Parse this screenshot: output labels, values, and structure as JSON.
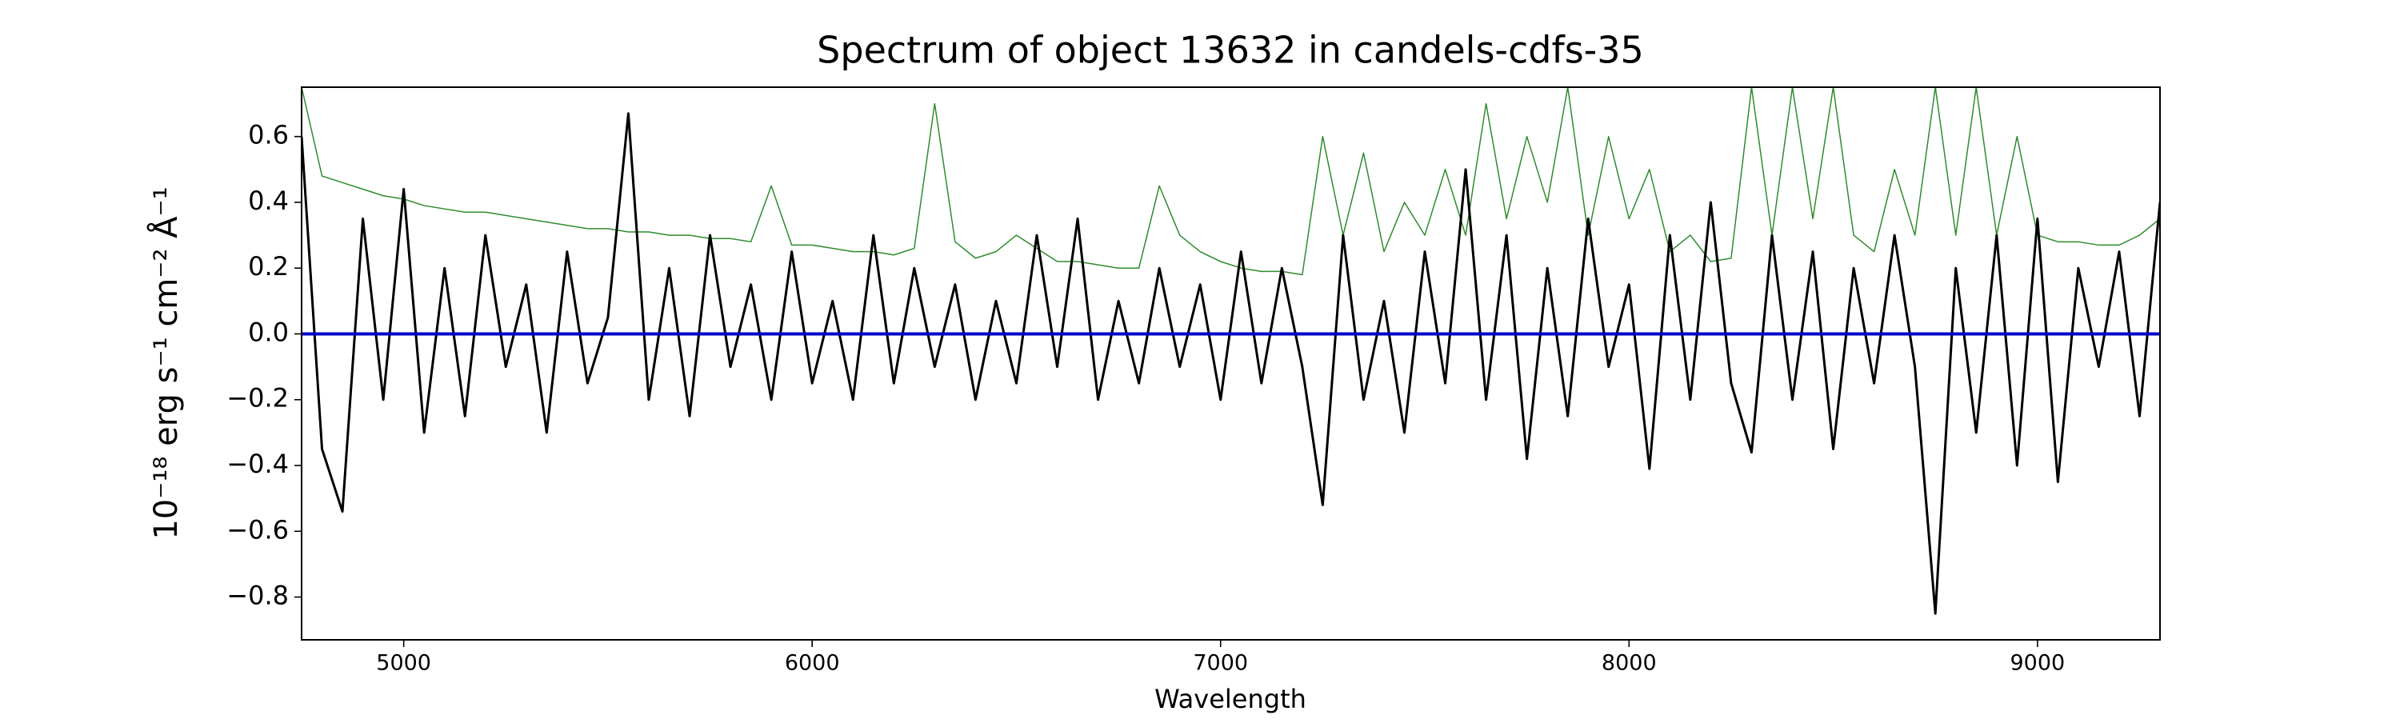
{
  "chart_data": {
    "type": "line",
    "title": "Spectrum of object 13632 in candels-cdfs-35",
    "xlabel": "Wavelength",
    "ylabel": "10⁻¹⁸ erg s⁻¹ cm⁻² Å⁻¹",
    "x": [
      4750,
      4800,
      4850,
      4900,
      4950,
      5000,
      5050,
      5100,
      5150,
      5200,
      5250,
      5300,
      5350,
      5400,
      5450,
      5500,
      5550,
      5600,
      5650,
      5700,
      5750,
      5800,
      5850,
      5900,
      5950,
      6000,
      6050,
      6100,
      6150,
      6200,
      6250,
      6300,
      6350,
      6400,
      6450,
      6500,
      6550,
      6600,
      6650,
      6700,
      6750,
      6800,
      6850,
      6900,
      6950,
      7000,
      7050,
      7100,
      7150,
      7200,
      7250,
      7300,
      7350,
      7400,
      7450,
      7500,
      7550,
      7600,
      7650,
      7700,
      7750,
      7800,
      7850,
      7900,
      7950,
      8000,
      8050,
      8100,
      8150,
      8200,
      8250,
      8300,
      8350,
      8400,
      8450,
      8500,
      8550,
      8600,
      8650,
      8700,
      8750,
      8800,
      8850,
      8900,
      8950,
      9000,
      9050,
      9100,
      9150,
      9200,
      9250,
      9300
    ],
    "series": [
      {
        "color": "#2e8b2e",
        "values": [
          0.75,
          0.48,
          0.46,
          0.44,
          0.42,
          0.41,
          0.39,
          0.38,
          0.37,
          0.37,
          0.36,
          0.35,
          0.34,
          0.33,
          0.32,
          0.32,
          0.31,
          0.31,
          0.3,
          0.3,
          0.29,
          0.29,
          0.28,
          0.45,
          0.27,
          0.27,
          0.26,
          0.25,
          0.25,
          0.24,
          0.26,
          0.7,
          0.28,
          0.23,
          0.25,
          0.3,
          0.26,
          0.22,
          0.22,
          0.21,
          0.2,
          0.2,
          0.45,
          0.3,
          0.25,
          0.22,
          0.2,
          0.19,
          0.19,
          0.18,
          0.6,
          0.3,
          0.55,
          0.25,
          0.4,
          0.3,
          0.5,
          0.3,
          0.7,
          0.35,
          0.6,
          0.4,
          0.75,
          0.3,
          0.6,
          0.35,
          0.5,
          0.25,
          0.3,
          0.22,
          0.23,
          0.75,
          0.3,
          0.75,
          0.35,
          0.75,
          0.3,
          0.25,
          0.5,
          0.3,
          0.75,
          0.3,
          0.75,
          0.3,
          0.6,
          0.3,
          0.28,
          0.28,
          0.27,
          0.27,
          0.3,
          0.35
        ],
        "width": 1.5
      },
      {
        "color": "#000000",
        "values": [
          0.6,
          -0.35,
          -0.54,
          0.35,
          -0.2,
          0.44,
          -0.3,
          0.2,
          -0.25,
          0.3,
          -0.1,
          0.15,
          -0.3,
          0.25,
          -0.15,
          0.05,
          0.67,
          -0.2,
          0.2,
          -0.25,
          0.3,
          -0.1,
          0.15,
          -0.2,
          0.25,
          -0.15,
          0.1,
          -0.2,
          0.3,
          -0.15,
          0.2,
          -0.1,
          0.15,
          -0.2,
          0.1,
          -0.15,
          0.3,
          -0.1,
          0.35,
          -0.2,
          0.1,
          -0.15,
          0.2,
          -0.1,
          0.15,
          -0.2,
          0.25,
          -0.15,
          0.2,
          -0.1,
          -0.52,
          0.3,
          -0.2,
          0.1,
          -0.3,
          0.25,
          -0.15,
          0.5,
          -0.2,
          0.3,
          -0.38,
          0.2,
          -0.25,
          0.35,
          -0.1,
          0.15,
          -0.41,
          0.3,
          -0.2,
          0.4,
          -0.15,
          -0.36,
          0.3,
          -0.2,
          0.25,
          -0.35,
          0.2,
          -0.15,
          0.3,
          -0.1,
          -0.85,
          0.2,
          -0.3,
          0.3,
          -0.4,
          0.35,
          -0.45,
          0.2,
          -0.1,
          0.25,
          -0.25,
          0.4
        ],
        "width": 3
      },
      {
        "color": "#0000cc",
        "values": [
          0,
          0,
          0,
          0,
          0,
          0,
          0,
          0,
          0,
          0,
          0,
          0,
          0,
          0,
          0,
          0,
          0,
          0,
          0,
          0,
          0,
          0,
          0,
          0,
          0,
          0,
          0,
          0,
          0,
          0,
          0,
          0,
          0,
          0,
          0,
          0,
          0,
          0,
          0,
          0,
          0,
          0,
          0,
          0,
          0,
          0,
          0,
          0,
          0,
          0,
          0,
          0,
          0,
          0,
          0,
          0,
          0,
          0,
          0,
          0,
          0,
          0,
          0,
          0,
          0,
          0,
          0,
          0,
          0,
          0,
          0,
          0,
          0,
          0,
          0,
          0,
          0,
          0,
          0,
          0,
          0,
          0,
          0,
          0,
          0,
          0,
          0,
          0,
          0,
          0,
          0,
          0
        ],
        "width": 4
      }
    ],
    "xlim": [
      4750,
      9300
    ],
    "xticks": [
      5000,
      6000,
      7000,
      8000,
      9000
    ],
    "ylim": [
      -0.93,
      0.75
    ],
    "yticks": [
      {
        "value": -0.8,
        "label": "−0.8"
      },
      {
        "value": -0.6,
        "label": "−0.6"
      },
      {
        "value": -0.4,
        "label": "−0.4"
      },
      {
        "value": -0.2,
        "label": "−0.2"
      },
      {
        "value": 0,
        "label": "0.0"
      },
      0.2,
      0.4,
      0.6
    ]
  }
}
